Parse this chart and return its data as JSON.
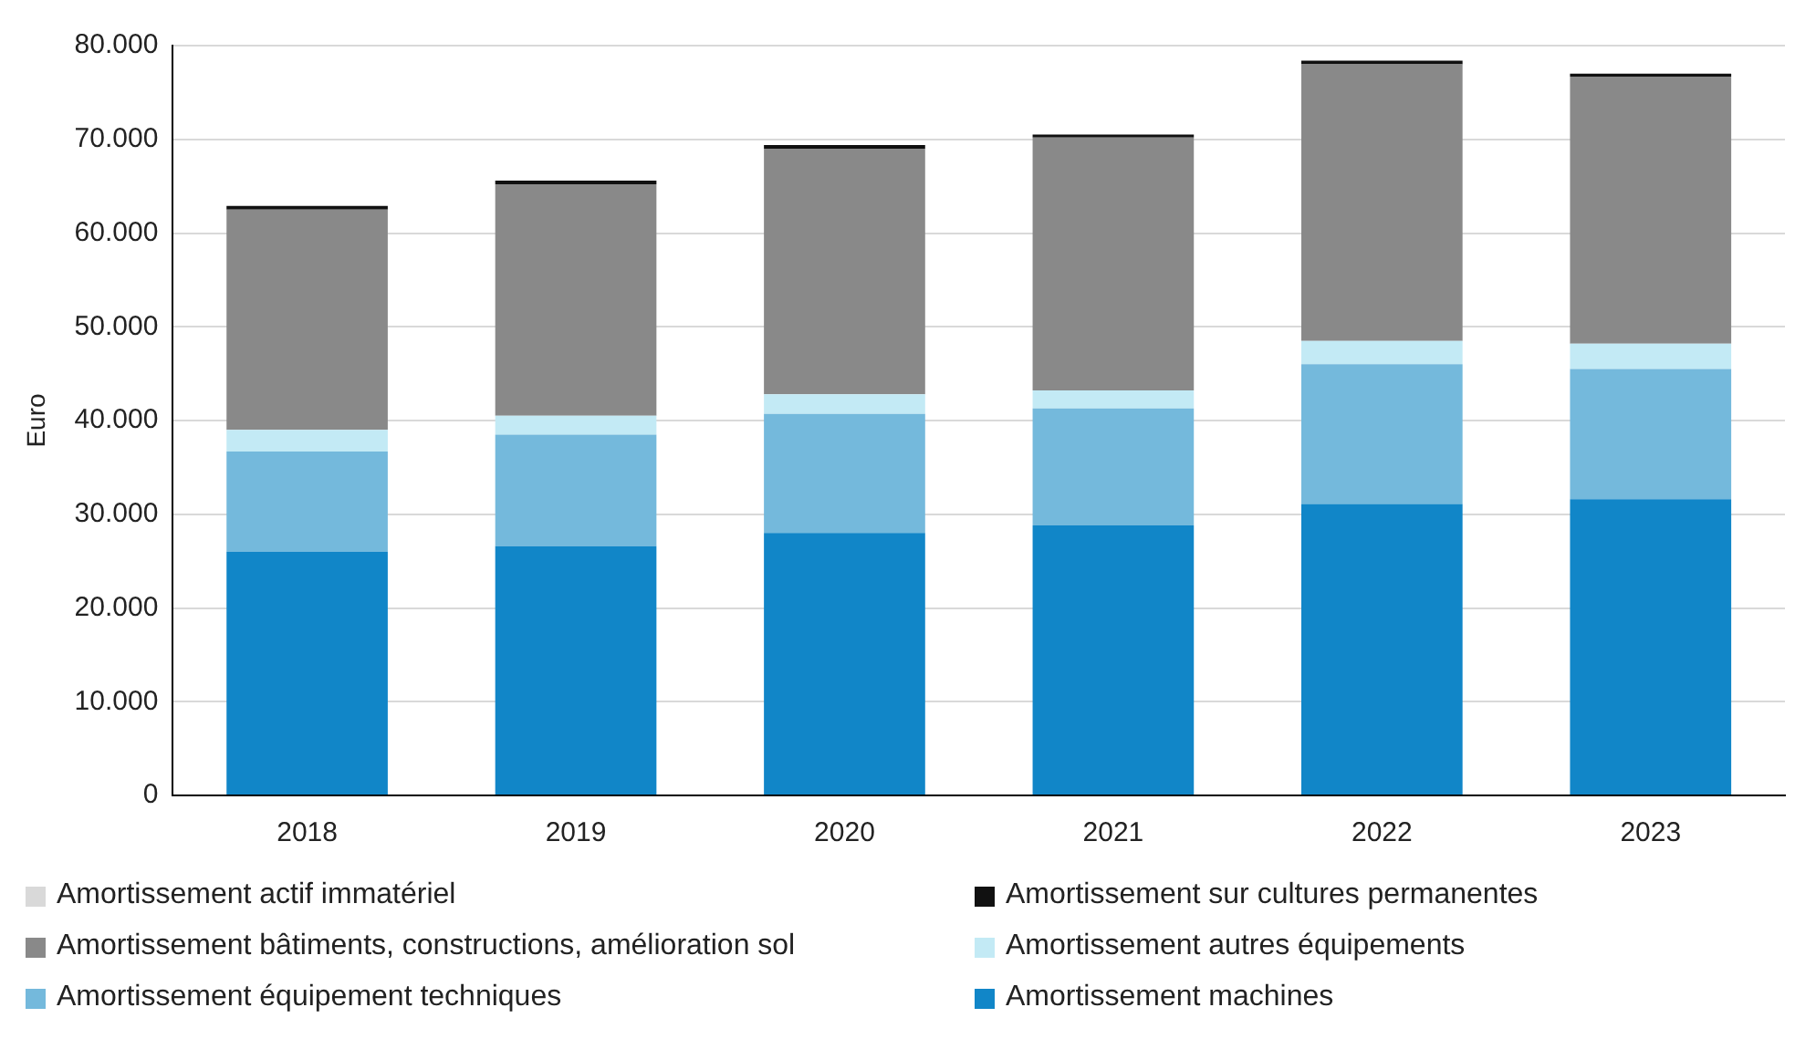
{
  "chart_data": {
    "type": "bar",
    "stacked": true,
    "ylabel": "Euro",
    "categories": [
      "2018",
      "2019",
      "2020",
      "2021",
      "2022",
      "2023"
    ],
    "ylim": [
      0,
      80000
    ],
    "yticks": [
      0,
      {
        "value": 10000,
        "label": "10.000"
      },
      {
        "value": 20000,
        "label": "20.000"
      },
      {
        "value": 30000,
        "label": "30.000"
      },
      {
        "value": 40000,
        "label": "40.000"
      },
      {
        "value": 50000,
        "label": "50.000"
      },
      {
        "value": 60000,
        "label": "60.000"
      },
      {
        "value": 70000,
        "label": "70.000"
      },
      {
        "value": 80000,
        "label": "80.000"
      }
    ],
    "grid": "y",
    "legend": "bottom",
    "series": [
      {
        "name": "Amortissement machines",
        "color": "#1186c8",
        "values": [
          26000,
          26600,
          28000,
          28800,
          31100,
          31600
        ]
      },
      {
        "name": "Amortissement équipement techniques",
        "color": "#74b9dc",
        "values": [
          10700,
          11900,
          12700,
          12500,
          14900,
          13900
        ]
      },
      {
        "name": "Amortissement autres équipements",
        "color": "#c3eaf5",
        "values": [
          2300,
          2000,
          2100,
          1900,
          2500,
          2700
        ]
      },
      {
        "name": "Amortissement bâtiments, constructions, amélioration sol",
        "color": "#898989",
        "values": [
          23500,
          24700,
          26200,
          27000,
          29500,
          28500
        ]
      },
      {
        "name": "Amortissement sur cultures permanentes",
        "color": "#111111",
        "values": [
          400,
          400,
          400,
          300,
          400,
          300
        ]
      },
      {
        "name": "Amortissement actif immatériel",
        "color": "#d9d9d9",
        "values": [
          0,
          0,
          0,
          0,
          0,
          0
        ]
      }
    ]
  }
}
